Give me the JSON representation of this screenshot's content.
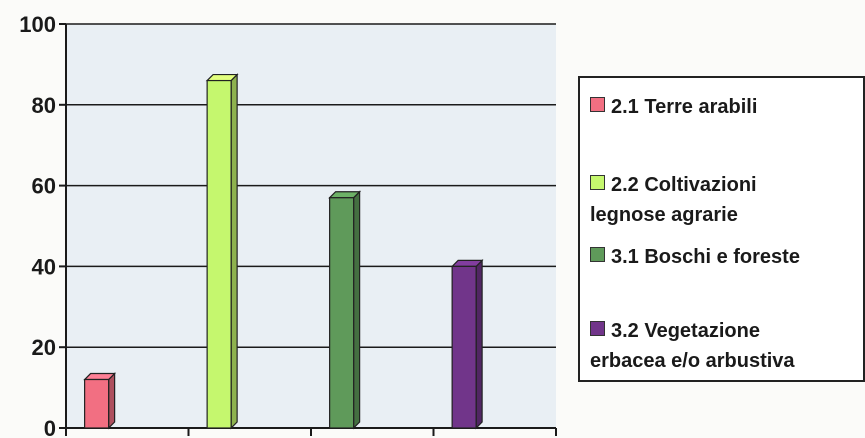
{
  "chart_data": {
    "type": "bar",
    "categories": [
      "2.1 Terre arabili",
      "2.2 Coltivazioni legnose agrarie",
      "3.1 Boschi e foreste",
      "3.2 Vegetazione erbacea e/o arbustiva"
    ],
    "series": [
      {
        "values": [
          12,
          86,
          57,
          40
        ],
        "colors": [
          "#f26f82",
          "#c5f76e",
          "#5f9a5a",
          "#71358a"
        ]
      }
    ],
    "ylim": [
      0,
      100
    ],
    "yticks": [
      0,
      20,
      40,
      60,
      80,
      100
    ],
    "xlabel": "",
    "ylabel": "",
    "grid": true,
    "legend_position": "right",
    "legend": [
      {
        "line1": "2.1 Terre arabili",
        "line2": "",
        "color": "#f26f82"
      },
      {
        "line1": "2.2 Coltivazioni",
        "line2": "legnose agrarie",
        "color": "#c5f76e"
      },
      {
        "line1": "3.1 Boschi e foreste",
        "line2": "",
        "color": "#5f9a5a"
      },
      {
        "line1": "3.2 Vegetazione",
        "line2": "erbacea e/o arbustiva",
        "color": "#71358a"
      }
    ]
  }
}
